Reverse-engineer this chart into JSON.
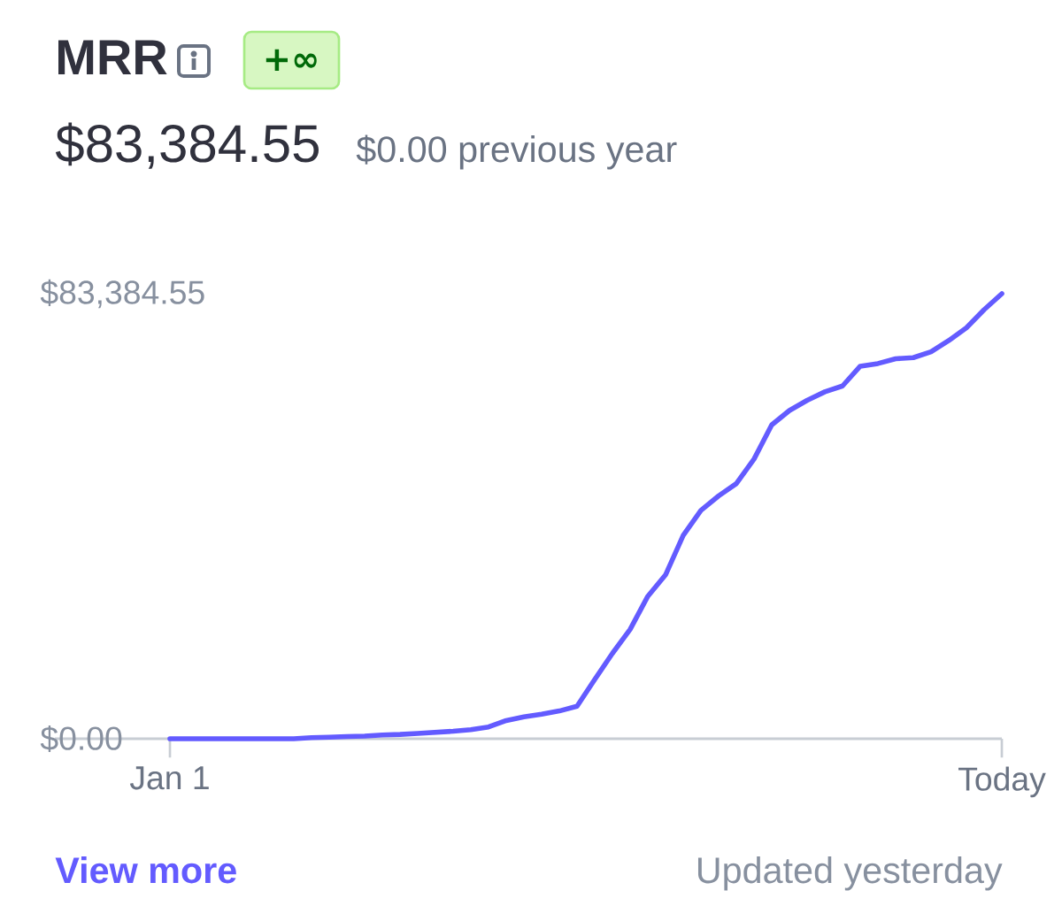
{
  "chart_data": {
    "type": "line",
    "title": "MRR",
    "subtitle": "$83,384.55",
    "annotations": [
      "+∞",
      "$0.00 previous year",
      "View more",
      "Updated yesterday"
    ],
    "categories": [
      "Jan 1",
      null,
      null,
      null,
      null,
      null,
      null,
      null,
      null,
      null,
      null,
      null,
      null,
      null,
      null,
      null,
      null,
      null,
      null,
      null,
      null,
      null,
      null,
      null,
      null,
      null,
      null,
      null,
      null,
      null,
      null,
      null,
      null,
      null,
      null,
      null,
      null,
      null,
      null,
      null,
      null,
      null,
      null,
      null,
      null,
      null,
      null,
      "Today"
    ],
    "values": [
      0,
      0,
      0,
      0,
      0,
      0,
      0,
      0,
      200,
      300,
      400,
      500,
      700,
      800,
      1000,
      1200,
      1400,
      1700,
      2200,
      3400,
      4100,
      4600,
      5200,
      6100,
      11100,
      16000,
      20500,
      26700,
      30700,
      38100,
      42800,
      45500,
      47800,
      52400,
      58800,
      61500,
      63400,
      65000,
      66100,
      69800,
      70300,
      71200,
      71400,
      72500,
      74600,
      77000,
      80400,
      83384.55
    ],
    "color": "#635bff",
    "line_style": "solid",
    "marker": "none",
    "ylim": [
      0,
      83384.55
    ],
    "yticks": [
      {
        "value": 0,
        "label": "$0.00"
      },
      {
        "value": 83384.55,
        "label": "$83,384.55"
      }
    ]
  }
}
